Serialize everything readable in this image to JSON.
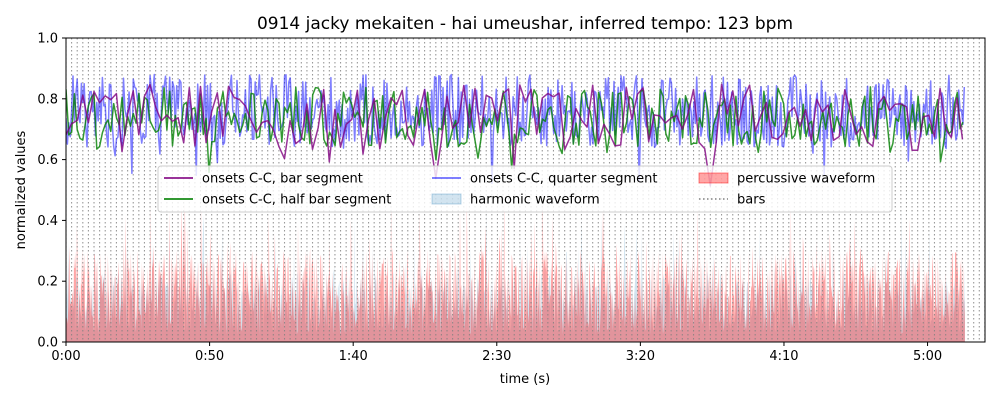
{
  "chart_data": {
    "type": "line",
    "title": "0914 jacky mekaiten - hai umeushar, inferred tempo: 123 bpm",
    "xlabel": "time (s)",
    "ylabel": "normalized values",
    "xlim": [
      0,
      320
    ],
    "ylim": [
      0,
      1.0
    ],
    "x_ticks": [
      {
        "value": 0,
        "label": "0:00"
      },
      {
        "value": 50,
        "label": "0:50"
      },
      {
        "value": 100,
        "label": "1:40"
      },
      {
        "value": 150,
        "label": "2:30"
      },
      {
        "value": 200,
        "label": "3:20"
      },
      {
        "value": 250,
        "label": "4:10"
      },
      {
        "value": 300,
        "label": "5:00"
      }
    ],
    "y_ticks": [
      {
        "value": 0.0,
        "label": "0.0"
      },
      {
        "value": 0.2,
        "label": "0.2"
      },
      {
        "value": 0.4,
        "label": "0.4"
      },
      {
        "value": 0.6,
        "label": "0.6"
      },
      {
        "value": 0.8,
        "label": "0.8"
      },
      {
        "value": 1.0,
        "label": "1.0"
      }
    ],
    "grid": false,
    "legend": {
      "placement": "center",
      "columns": 3
    },
    "bar_interval_s": 1.951,
    "series": [
      {
        "name": "onsets C-C, bar segment",
        "kind": "line",
        "color": "#800080",
        "alpha": 0.8,
        "step_s": 1.951,
        "mean": 0.74,
        "spread": 0.11
      },
      {
        "name": "onsets C-C, half bar segment",
        "kind": "line",
        "color": "#008000",
        "alpha": 0.8,
        "step_s": 0.976,
        "mean": 0.74,
        "spread": 0.1
      },
      {
        "name": "onsets C-C, quarter segment",
        "kind": "line",
        "color": "#0000ff",
        "alpha": 0.5,
        "step_s": 0.488,
        "mean": 0.76,
        "spread": 0.12
      },
      {
        "name": "harmonic waveform",
        "kind": "area",
        "color": "#1f77b4",
        "alpha": 0.2,
        "step_s": 0.2,
        "mean": 0.1,
        "spread": 0.2
      },
      {
        "name": "percussive waveform",
        "kind": "area",
        "color": "#ff0000",
        "alpha": 0.35,
        "step_s": 0.2,
        "mean": 0.12,
        "spread": 0.28
      },
      {
        "name": "bars",
        "kind": "vlines",
        "color": "#808080",
        "style": "dotted"
      }
    ]
  }
}
